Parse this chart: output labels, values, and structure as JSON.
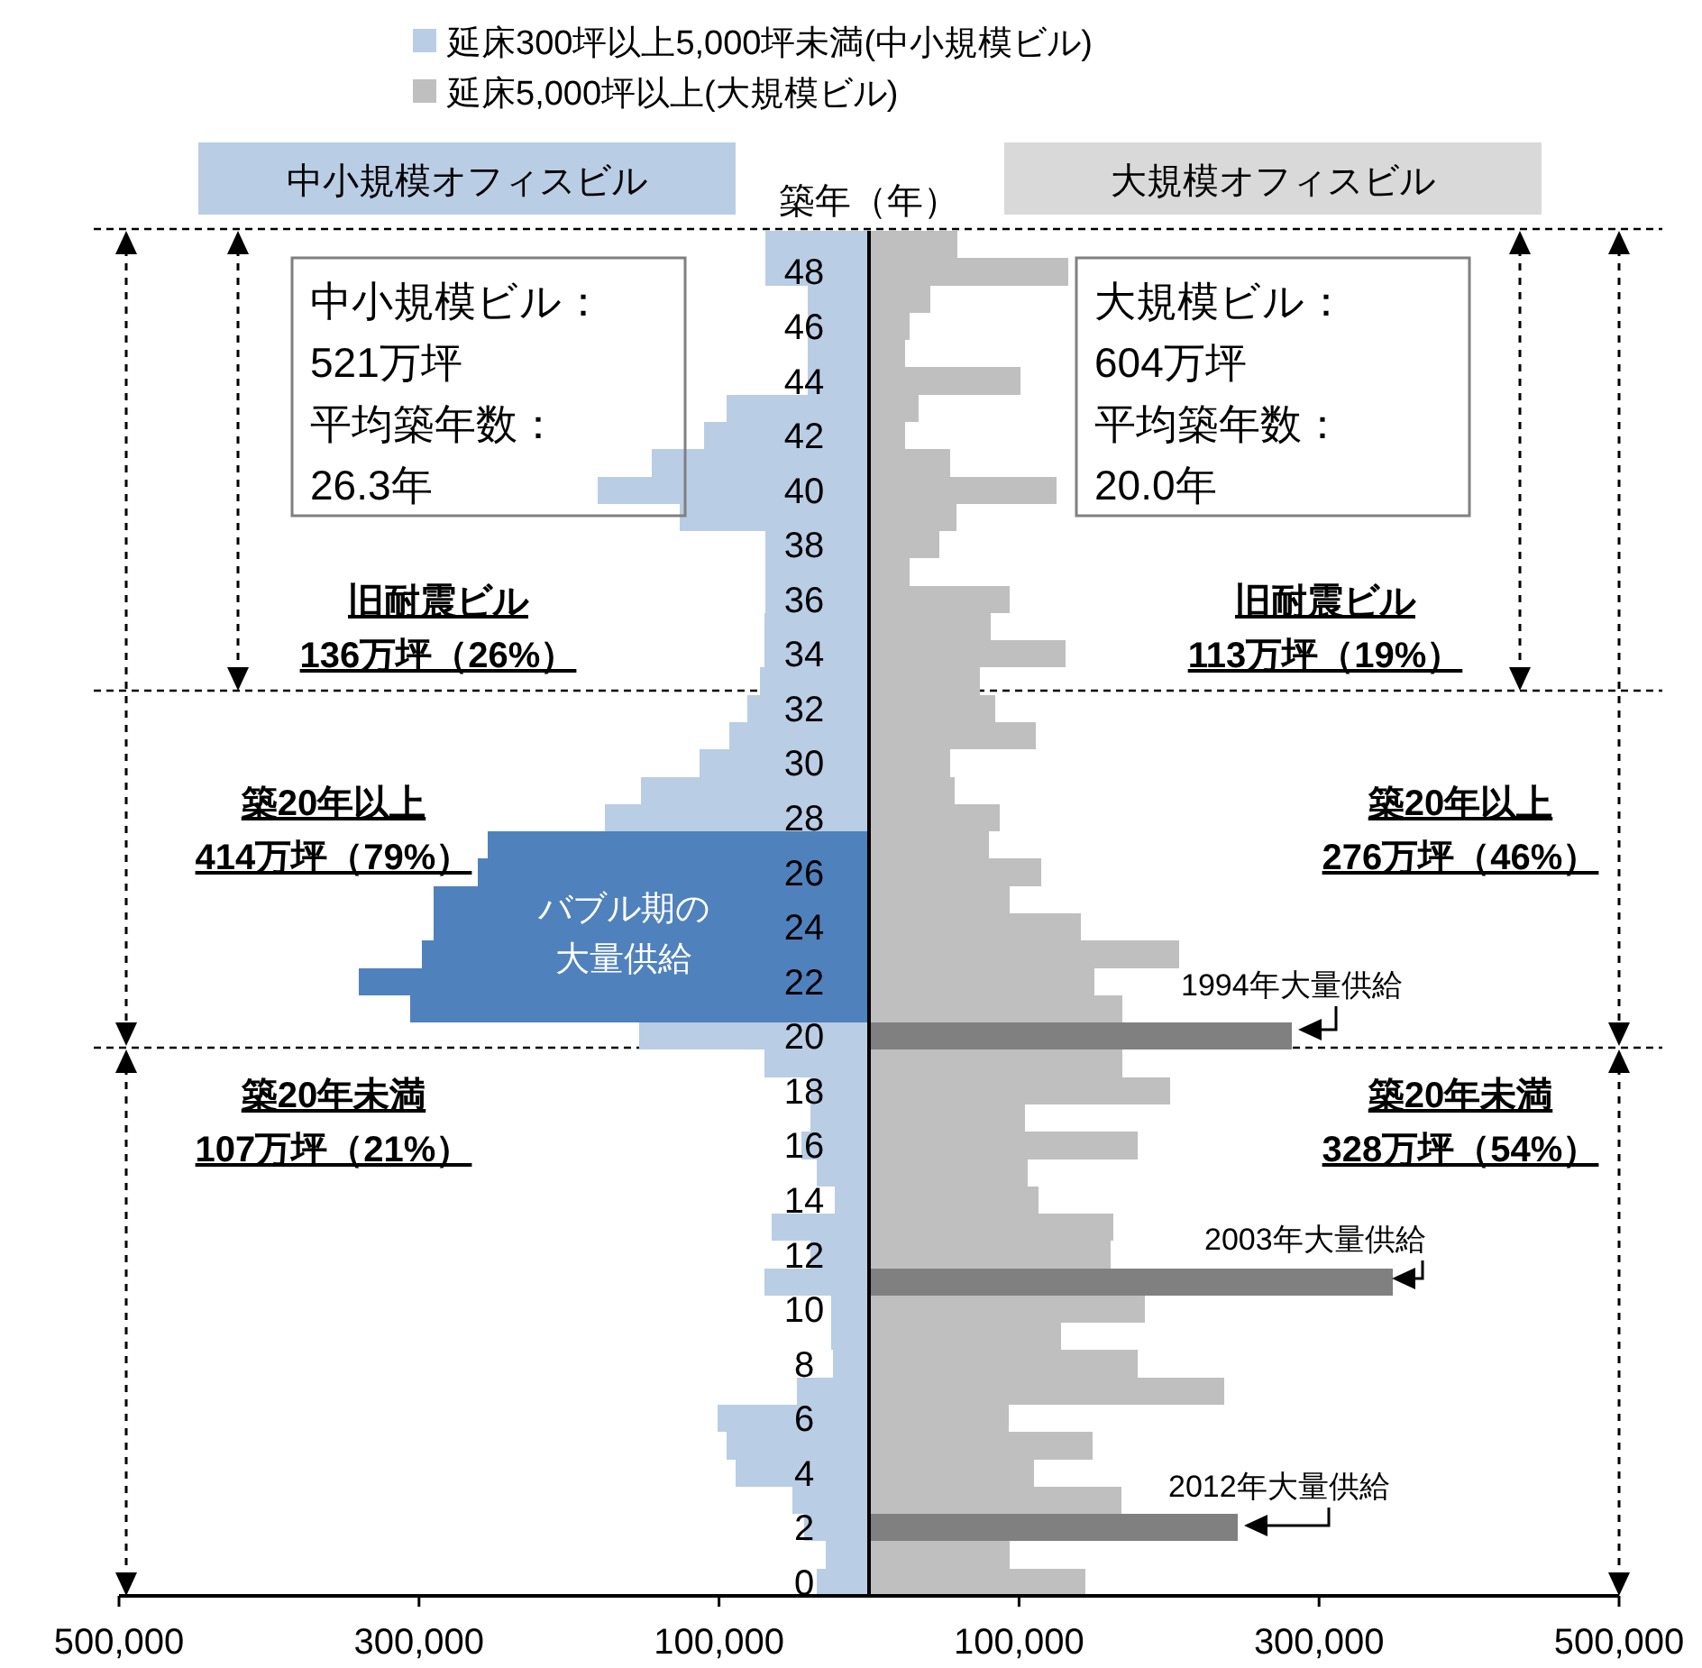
{
  "chart_data": {
    "type": "bar",
    "orientation": "horizontal",
    "stacked": true,
    "ylabel": "築年（年）",
    "categories": [
      null,
      "48",
      null,
      "46",
      null,
      "44",
      null,
      "42",
      null,
      "40",
      null,
      "38",
      null,
      "36",
      null,
      "34",
      null,
      "32",
      null,
      "30",
      null,
      "28",
      null,
      "26",
      null,
      "24",
      null,
      "22",
      null,
      "20",
      null,
      "18",
      null,
      "16",
      null,
      "14",
      null,
      "12",
      null,
      "10",
      null,
      "8",
      null,
      "6",
      null,
      "4",
      null,
      "2",
      null,
      "0"
    ],
    "series": [
      {
        "name": "延床300坪以上5,000坪未満(中小規模ビル)",
        "color": "#b9cde5",
        "colors": [
          "#b9cde5",
          "#b9cde5",
          "#b9cde5",
          "#b9cde5",
          "#b9cde5",
          "#b9cde5",
          "#b9cde5",
          "#b9cde5",
          "#b9cde5",
          "#b9cde5",
          "#b9cde5",
          "#b9cde5",
          "#b9cde5",
          "#b9cde5",
          "#b9cde5",
          "#b9cde5",
          "#b9cde5",
          "#b9cde5",
          "#b9cde5",
          "#b9cde5",
          "#b9cde5",
          "#b9cde5",
          "#4f81bd",
          "#4f81bd",
          "#4f81bd",
          "#4f81bd",
          "#4f81bd",
          "#4f81bd",
          "#4f81bd",
          "#b9cde5",
          "#b9cde5",
          "#b9cde5",
          "#b9cde5",
          "#b9cde5",
          "#b9cde5",
          "#b9cde5",
          "#b9cde5",
          "#b9cde5",
          "#b9cde5",
          "#b9cde5",
          "#b9cde5",
          "#b9cde5",
          "#b9cde5",
          "#b9cde5",
          "#b9cde5",
          "#b9cde5",
          "#b9cde5",
          "#b9cde5",
          "#b9cde5",
          "#b9cde5"
        ],
        "values": [
          -69000,
          -69000,
          -41000,
          -41000,
          -41000,
          -41000,
          -95000,
          -110000,
          -145000,
          -181000,
          -126000,
          -69000,
          -69000,
          -69000,
          -70000,
          -70000,
          -73000,
          -81000,
          -93000,
          -113000,
          -152000,
          -176000,
          -254000,
          -261000,
          -290000,
          -290000,
          -298000,
          -340000,
          -306000,
          -153000,
          -70000,
          -39000,
          -39000,
          -45000,
          -35000,
          -23000,
          -65000,
          -39000,
          -70000,
          -25000,
          -25000,
          -24000,
          -48000,
          -101000,
          -95000,
          -89000,
          -51000,
          -43000,
          -29000,
          -35000
        ]
      },
      {
        "name": "延床5,000坪以上(大規模ビル)",
        "color": "#bfbfbf",
        "colors": [
          "#bfbfbf",
          "#bfbfbf",
          "#bfbfbf",
          "#bfbfbf",
          "#bfbfbf",
          "#bfbfbf",
          "#bfbfbf",
          "#bfbfbf",
          "#bfbfbf",
          "#bfbfbf",
          "#bfbfbf",
          "#bfbfbf",
          "#bfbfbf",
          "#bfbfbf",
          "#bfbfbf",
          "#bfbfbf",
          "#bfbfbf",
          "#bfbfbf",
          "#bfbfbf",
          "#bfbfbf",
          "#bfbfbf",
          "#bfbfbf",
          "#bfbfbf",
          "#bfbfbf",
          "#bfbfbf",
          "#bfbfbf",
          "#bfbfbf",
          "#bfbfbf",
          "#bfbfbf",
          "#808080",
          "#bfbfbf",
          "#bfbfbf",
          "#bfbfbf",
          "#bfbfbf",
          "#bfbfbf",
          "#bfbfbf",
          "#bfbfbf",
          "#bfbfbf",
          "#808080",
          "#bfbfbf",
          "#bfbfbf",
          "#bfbfbf",
          "#bfbfbf",
          "#bfbfbf",
          "#bfbfbf",
          "#bfbfbf",
          "#bfbfbf",
          "#808080",
          "#bfbfbf",
          "#bfbfbf"
        ],
        "values": [
          59000,
          133000,
          41000,
          27000,
          24000,
          101000,
          33000,
          24000,
          54000,
          125000,
          58000,
          47000,
          27000,
          94000,
          81000,
          131000,
          74000,
          84000,
          111000,
          54000,
          57000,
          87000,
          80000,
          115000,
          94000,
          141000,
          207000,
          150000,
          169000,
          282000,
          169000,
          201000,
          104000,
          179000,
          106000,
          113000,
          163000,
          161000,
          349000,
          184000,
          128000,
          179000,
          237000,
          93000,
          149000,
          110000,
          168000,
          246000,
          94000,
          144000
        ]
      }
    ],
    "xlim": [
      -500000,
      500000
    ],
    "xticks": [
      {
        "value": -500000,
        "label": "500,000"
      },
      {
        "value": -300000,
        "label": "300,000"
      },
      {
        "value": -100000,
        "label": "100,000"
      },
      {
        "value": 100000,
        "label": "100,000"
      },
      {
        "value": 300000,
        "label": "300,000"
      },
      {
        "value": 500000,
        "label": "500,000"
      }
    ],
    "legend": "top",
    "annotations": [
      "中小規模オフィスビル",
      "大規模オフィスビル",
      "中小規模ビル：",
      "521万坪",
      "平均築年数：",
      "26.3年",
      "大規模ビル：",
      "604万坪",
      "平均築年数：",
      "20.0年",
      "旧耐震ビル",
      "136万坪（26%）",
      "旧耐震ビル",
      "113万坪（19%）",
      "築20年以上",
      "414万坪（79%）",
      "築20年以上",
      "276万坪（46%）",
      "築20年未満",
      "107万坪（21%）",
      "築20年未満",
      "328万坪（54%）",
      "バブル期の",
      "大量供給",
      "1994年大量供給",
      "2003年大量供給",
      "2012年大量供給"
    ]
  }
}
